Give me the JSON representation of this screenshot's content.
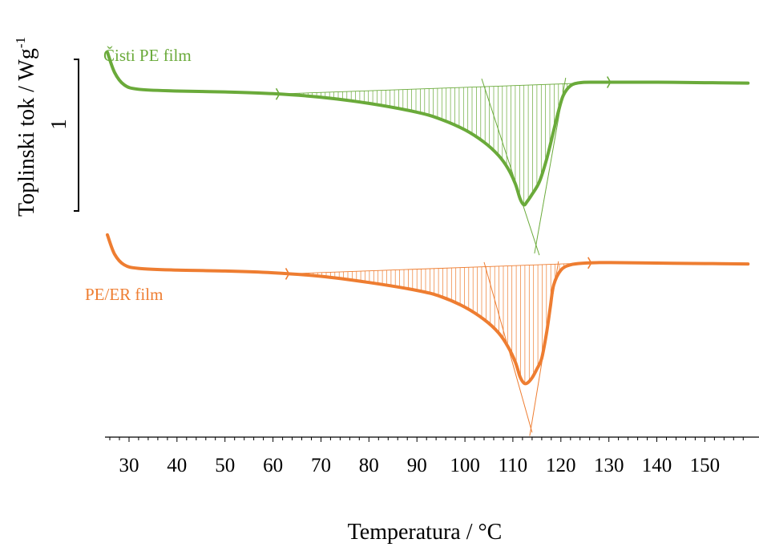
{
  "chart_data": {
    "type": "line",
    "title": "",
    "xlabel": "Temperatura / °C",
    "ylabel_main": "Toplinski tok / Wg",
    "ylabel_sup": "-1",
    "scale_bar_label": "1",
    "xlim": [
      25,
      159
    ],
    "x_ticks": [
      30,
      40,
      50,
      60,
      70,
      80,
      90,
      100,
      110,
      120,
      130,
      140,
      150
    ],
    "legend": "inline",
    "grid": false,
    "y_units": "arbitrary offset, W/g (scale bar = 1 W/g)",
    "series": [
      {
        "name": "Čisti PE film",
        "color": "#6aaa3a",
        "x": [
          25.5,
          27,
          29,
          32,
          40,
          50,
          60,
          70,
          80,
          90,
          95,
          100,
          104,
          107,
          109,
          110.5,
          111.5,
          112.3,
          113,
          114,
          115.5,
          117,
          118.5,
          119.5,
          120.5,
          122,
          124,
          127,
          130,
          140,
          150,
          159
        ],
        "y": [
          4.59,
          4.36,
          4.22,
          4.17,
          4.15,
          4.14,
          4.12,
          4.08,
          4.01,
          3.91,
          3.83,
          3.71,
          3.57,
          3.42,
          3.27,
          3.1,
          2.93,
          2.86,
          2.9,
          2.98,
          3.12,
          3.37,
          3.7,
          3.92,
          4.1,
          4.21,
          4.245,
          4.25,
          4.25,
          4.25,
          4.245,
          4.24
        ],
        "integration_limits": [
          61,
          130
        ],
        "peak": [
          112.5,
          2.86
        ]
      },
      {
        "name": "PE/ER film",
        "color": "#ee7d31",
        "x": [
          25.5,
          27,
          29,
          32,
          40,
          50,
          60,
          70,
          80,
          90,
          95,
          100,
          104,
          107,
          109,
          110.5,
          111.5,
          112.3,
          113,
          114,
          115,
          116,
          117,
          117.8,
          118.5,
          120,
          122,
          125,
          128,
          130,
          140,
          150,
          159
        ],
        "y": [
          2.52,
          2.3,
          2.18,
          2.14,
          2.12,
          2.11,
          2.09,
          2.05,
          1.98,
          1.89,
          1.82,
          1.7,
          1.56,
          1.41,
          1.25,
          1.08,
          0.91,
          0.84,
          0.84,
          0.9,
          1.0,
          1.12,
          1.4,
          1.7,
          1.95,
          2.12,
          2.18,
          2.2,
          2.205,
          2.205,
          2.2,
          2.195,
          2.19
        ],
        "integration_limits": [
          63,
          126
        ],
        "peak": [
          112.8,
          0.84
        ]
      }
    ],
    "onset_tangents": [
      {
        "series": "Čisti PE film",
        "points": [
          [
            103.5,
            4.29
          ],
          [
            115.5,
            2.29
          ]
        ]
      },
      {
        "series": "Čisti PE film",
        "points": [
          [
            121,
            4.3
          ],
          [
            114.5,
            2.31
          ]
        ]
      },
      {
        "series": "PE/ER film",
        "points": [
          [
            104,
            2.21
          ],
          [
            114,
            0.28
          ]
        ]
      },
      {
        "series": "PE/ER film",
        "points": [
          [
            119.5,
            2.22
          ],
          [
            113.5,
            0.24
          ]
        ]
      }
    ]
  }
}
